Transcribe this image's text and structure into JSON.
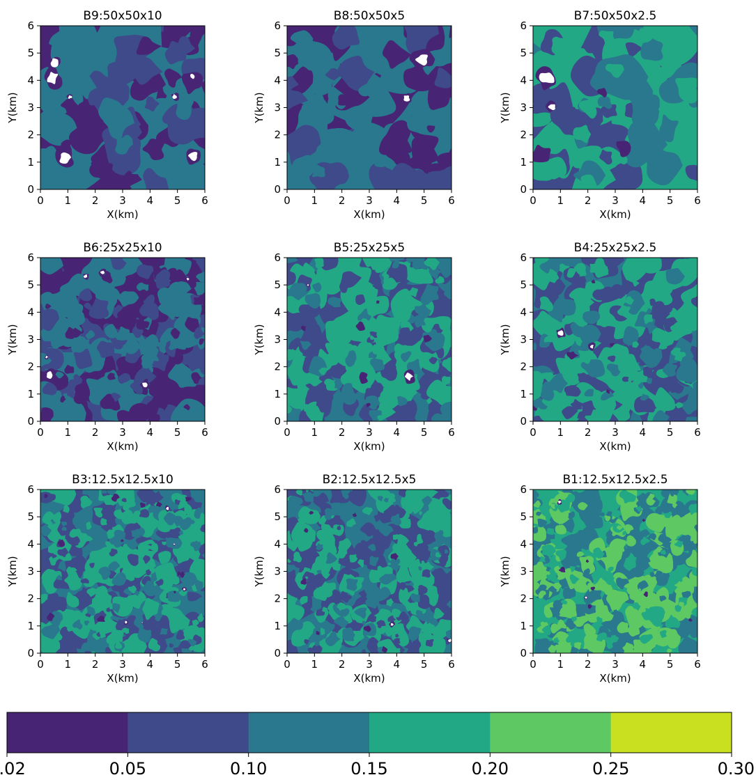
{
  "figure": {
    "colorbar": {
      "levels": [
        0.02,
        0.05,
        0.1,
        0.15,
        0.2,
        0.25,
        0.3
      ],
      "tick_labels": [
        "0.02",
        "0.05",
        "0.10",
        "0.15",
        "0.20",
        "0.25",
        "0.30"
      ],
      "colors": [
        "#482475",
        "#3e4a89",
        "#2a788e",
        "#22a884",
        "#5ec962",
        "#c8e020"
      ]
    }
  },
  "chart_data": [
    {
      "type": "heatmap",
      "title": "B9:50x50x10",
      "xlabel": "X(km)",
      "ylabel": "Y(km)",
      "xlim": [
        0,
        6
      ],
      "ylim": [
        0,
        6
      ],
      "xticks": [
        "0",
        "1",
        "2",
        "3",
        "4",
        "5",
        "6"
      ],
      "yticks": [
        "0",
        "1",
        "2",
        "3",
        "4",
        "5",
        "6"
      ],
      "dominant_level": "0.05-0.10",
      "blank_fraction": 0.06,
      "patch_scale_km": 1.2,
      "seed": 9
    },
    {
      "type": "heatmap",
      "title": "B8:50x50x5",
      "xlabel": "X(km)",
      "ylabel": "Y(km)",
      "xlim": [
        0,
        6
      ],
      "ylim": [
        0,
        6
      ],
      "xticks": [
        "0",
        "1",
        "2",
        "3",
        "4",
        "5",
        "6"
      ],
      "yticks": [
        "0",
        "1",
        "2",
        "3",
        "4",
        "5",
        "6"
      ],
      "dominant_level": "0.05-0.10",
      "blank_fraction": 0.02,
      "patch_scale_km": 1.2,
      "seed": 8
    },
    {
      "type": "heatmap",
      "title": "B7:50x50x2.5",
      "xlabel": "X(km)",
      "ylabel": "Y(km)",
      "xlim": [
        0,
        6
      ],
      "ylim": [
        0,
        6
      ],
      "xticks": [
        "0",
        "1",
        "2",
        "3",
        "4",
        "5",
        "6"
      ],
      "yticks": [
        "0",
        "1",
        "2",
        "3",
        "4",
        "5",
        "6"
      ],
      "dominant_level": "0.10-0.15",
      "blank_fraction": 0.01,
      "patch_scale_km": 1.2,
      "seed": 7
    },
    {
      "type": "heatmap",
      "title": "B6:25x25x10",
      "xlabel": "X(km)",
      "ylabel": "Y(km)",
      "xlim": [
        0,
        6
      ],
      "ylim": [
        0,
        6
      ],
      "xticks": [
        "0",
        "1",
        "2",
        "3",
        "4",
        "5",
        "6"
      ],
      "yticks": [
        "0",
        "1",
        "2",
        "3",
        "4",
        "5",
        "6"
      ],
      "dominant_level": "0.05-0.10",
      "blank_fraction": 0.05,
      "patch_scale_km": 0.6,
      "seed": 6
    },
    {
      "type": "heatmap",
      "title": "B5:25x25x5",
      "xlabel": "X(km)",
      "ylabel": "Y(km)",
      "xlim": [
        0,
        6
      ],
      "ylim": [
        0,
        6
      ],
      "xticks": [
        "0",
        "1",
        "2",
        "3",
        "4",
        "5",
        "6"
      ],
      "yticks": [
        "0",
        "1",
        "2",
        "3",
        "4",
        "5",
        "6"
      ],
      "dominant_level": "0.10-0.15",
      "blank_fraction": 0.02,
      "patch_scale_km": 0.6,
      "seed": 5
    },
    {
      "type": "heatmap",
      "title": "B4:25x25x2.5",
      "xlabel": "X(km)",
      "ylabel": "Y(km)",
      "xlim": [
        0,
        6
      ],
      "ylim": [
        0,
        6
      ],
      "xticks": [
        "0",
        "1",
        "2",
        "3",
        "4",
        "5",
        "6"
      ],
      "yticks": [
        "0",
        "1",
        "2",
        "3",
        "4",
        "5",
        "6"
      ],
      "dominant_level": "0.10-0.15",
      "blank_fraction": 0.01,
      "patch_scale_km": 0.6,
      "seed": 4
    },
    {
      "type": "heatmap",
      "title": "B3:12.5x12.5x10",
      "xlabel": "X(km)",
      "ylabel": "Y(km)",
      "xlim": [
        0,
        6
      ],
      "ylim": [
        0,
        6
      ],
      "xticks": [
        "0",
        "1",
        "2",
        "3",
        "4",
        "5",
        "6"
      ],
      "yticks": [
        "0",
        "1",
        "2",
        "3",
        "4",
        "5",
        "6"
      ],
      "dominant_level": "0.10-0.15",
      "blank_fraction": 0.04,
      "patch_scale_km": 0.4,
      "seed": 3
    },
    {
      "type": "heatmap",
      "title": "B2:12.5x12.5x5",
      "xlabel": "X(km)",
      "ylabel": "Y(km)",
      "xlim": [
        0,
        6
      ],
      "ylim": [
        0,
        6
      ],
      "xticks": [
        "0",
        "1",
        "2",
        "3",
        "4",
        "5",
        "6"
      ],
      "yticks": [
        "0",
        "1",
        "2",
        "3",
        "4",
        "5",
        "6"
      ],
      "dominant_level": "0.10-0.15",
      "blank_fraction": 0.01,
      "patch_scale_km": 0.4,
      "seed": 2
    },
    {
      "type": "heatmap",
      "title": "B1:12.5x12.5x2.5",
      "xlabel": "X(km)",
      "ylabel": "Y(km)",
      "xlim": [
        0,
        6
      ],
      "ylim": [
        0,
        6
      ],
      "xticks": [
        "0",
        "1",
        "2",
        "3",
        "4",
        "5",
        "6"
      ],
      "yticks": [
        "0",
        "1",
        "2",
        "3",
        "4",
        "5",
        "6"
      ],
      "dominant_level": "0.15-0.20",
      "blank_fraction": 0.005,
      "patch_scale_km": 0.4,
      "seed": 1
    }
  ]
}
